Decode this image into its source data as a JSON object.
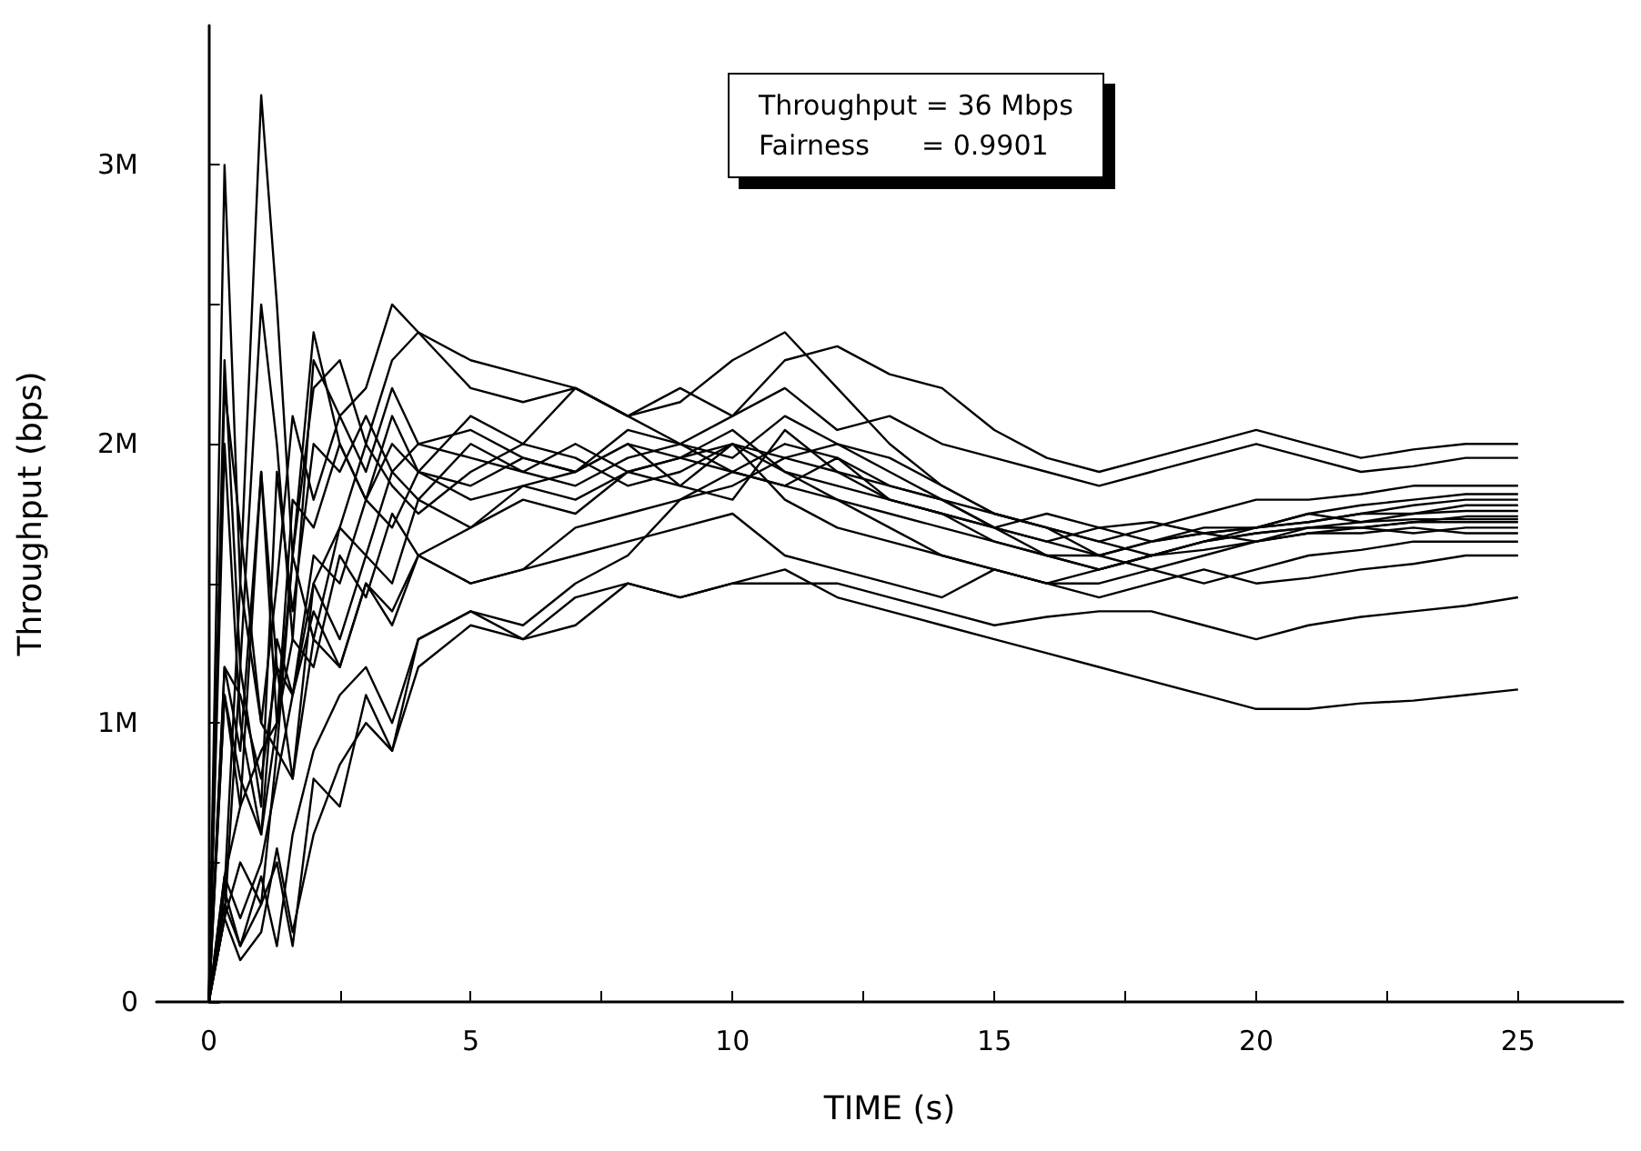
{
  "chart_data": {
    "type": "line",
    "xlabel": "TIME (s)",
    "ylabel": "Throughput (bps)",
    "annotations": [
      "Throughput = 36 Mbps",
      "Fairness      = 0.9901"
    ],
    "xlim": [
      -1,
      27
    ],
    "xticks": [
      0,
      {
        "value": 2.5,
        "label": null
      },
      5,
      {
        "value": 7.5,
        "label": null
      },
      10,
      {
        "value": 12.5,
        "label": null
      },
      15,
      {
        "value": 17.5,
        "label": null
      },
      20,
      {
        "value": 22.5,
        "label": null
      },
      25
    ],
    "ylim": [
      0,
      3500000
    ],
    "yticks": [
      {
        "value": 0,
        "label": "0"
      },
      {
        "value": 500000,
        "label": null
      },
      {
        "value": 1000000,
        "label": "1M"
      },
      {
        "value": 1500000,
        "label": null
      },
      {
        "value": 2000000,
        "label": "2M"
      },
      {
        "value": 2500000,
        "label": null
      },
      {
        "value": 3000000,
        "label": "3M"
      }
    ],
    "grid": false,
    "marker": "none",
    "line_style": "solid",
    "x": [
      0,
      0.3,
      0.6,
      1,
      1.3,
      1.6,
      2,
      2.5,
      3,
      3.5,
      4,
      5,
      6,
      7,
      8,
      9,
      10,
      11,
      12,
      13,
      14,
      15,
      16,
      17,
      18,
      19,
      20,
      21,
      22,
      23,
      24,
      25
    ],
    "series": [
      {
        "color": "#000000",
        "values": [
          0,
          3000000,
          1500000,
          1000000,
          900000,
          1600000,
          2200000,
          2300000,
          2000000,
          2300000,
          2400000,
          2200000,
          2150000,
          2200000,
          2100000,
          2200000,
          2100000,
          2300000,
          2350000,
          2250000,
          2200000,
          2050000,
          1950000,
          1900000,
          1950000,
          2000000,
          2050000,
          2000000,
          1950000,
          1980000,
          2000000,
          2000000
        ]
      },
      {
        "color": "#000000",
        "values": [
          0,
          400000,
          1500000,
          3250000,
          2500000,
          1600000,
          2400000,
          2000000,
          1800000,
          2000000,
          1900000,
          2100000,
          2000000,
          2200000,
          2100000,
          2000000,
          2100000,
          2200000,
          2050000,
          2100000,
          2000000,
          1950000,
          1900000,
          1850000,
          1900000,
          1950000,
          2000000,
          1950000,
          1900000,
          1920000,
          1950000,
          1950000
        ]
      },
      {
        "color": "#000000",
        "values": [
          0,
          300000,
          1200000,
          2500000,
          2000000,
          1300000,
          2300000,
          2100000,
          2200000,
          2500000,
          2400000,
          2300000,
          2250000,
          2200000,
          2100000,
          2150000,
          2300000,
          2400000,
          2200000,
          2000000,
          1850000,
          1750000,
          1700000,
          1650000,
          1700000,
          1750000,
          1800000,
          1800000,
          1820000,
          1850000,
          1850000,
          1850000
        ]
      },
      {
        "color": "#000000",
        "values": [
          0,
          2300000,
          1200000,
          700000,
          1900000,
          1400000,
          2000000,
          1900000,
          2100000,
          1900000,
          2000000,
          1950000,
          1900000,
          2000000,
          1900000,
          1850000,
          2000000,
          1900000,
          1800000,
          1700000,
          1600000,
          1550000,
          1500000,
          1550000,
          1600000,
          1650000,
          1700000,
          1720000,
          1750000,
          1780000,
          1800000,
          1800000
        ]
      },
      {
        "color": "#000000",
        "values": [
          0,
          2000000,
          1000000,
          600000,
          1000000,
          1800000,
          1700000,
          2000000,
          1800000,
          2100000,
          1900000,
          1850000,
          1950000,
          1900000,
          2000000,
          1950000,
          1900000,
          1850000,
          1800000,
          1750000,
          1700000,
          1650000,
          1600000,
          1600000,
          1650000,
          1700000,
          1700000,
          1720000,
          1750000,
          1750000,
          1780000,
          1780000
        ]
      },
      {
        "color": "#000000",
        "values": [
          0,
          1200000,
          900000,
          1900000,
          1200000,
          800000,
          1500000,
          1700000,
          2000000,
          1850000,
          1750000,
          1900000,
          2000000,
          1950000,
          1850000,
          1900000,
          2000000,
          1950000,
          1900000,
          1850000,
          1800000,
          1700000,
          1650000,
          1700000,
          1720000,
          1680000,
          1700000,
          1750000,
          1720000,
          1750000,
          1760000,
          1760000
        ]
      },
      {
        "color": "#000000",
        "values": [
          0,
          1100000,
          800000,
          600000,
          1300000,
          1100000,
          1600000,
          1500000,
          1800000,
          1700000,
          1900000,
          1800000,
          1850000,
          1900000,
          2000000,
          1850000,
          1800000,
          2050000,
          1900000,
          1800000,
          1750000,
          1700000,
          1600000,
          1550000,
          1600000,
          1650000,
          1680000,
          1700000,
          1700000,
          1720000,
          1740000,
          1740000
        ]
      },
      {
        "color": "#000000",
        "values": [
          0,
          450000,
          300000,
          500000,
          800000,
          1100000,
          1500000,
          1300000,
          1600000,
          1500000,
          1800000,
          1700000,
          1850000,
          1800000,
          1900000,
          1950000,
          2000000,
          1800000,
          1700000,
          1650000,
          1600000,
          1550000,
          1500000,
          1500000,
          1550000,
          1600000,
          1650000,
          1700000,
          1720000,
          1730000,
          1730000,
          1730000
        ]
      },
      {
        "color": "#000000",
        "values": [
          0,
          400000,
          200000,
          350000,
          500000,
          200000,
          800000,
          700000,
          1100000,
          900000,
          1300000,
          1400000,
          1350000,
          1500000,
          1600000,
          1800000,
          1900000,
          2000000,
          1950000,
          1800000,
          1750000,
          1700000,
          1650000,
          1600000,
          1650000,
          1680000,
          1650000,
          1680000,
          1700000,
          1720000,
          1720000,
          1720000
        ]
      },
      {
        "color": "#000000",
        "values": [
          0,
          300000,
          150000,
          250000,
          550000,
          250000,
          600000,
          850000,
          1000000,
          900000,
          1200000,
          1350000,
          1300000,
          1350000,
          1500000,
          1450000,
          1500000,
          1550000,
          1450000,
          1400000,
          1350000,
          1300000,
          1250000,
          1200000,
          1150000,
          1100000,
          1050000,
          1050000,
          1070000,
          1080000,
          1100000,
          1120000
        ]
      },
      {
        "color": "#000000",
        "values": [
          0,
          350000,
          200000,
          450000,
          200000,
          600000,
          900000,
          1100000,
          1200000,
          1000000,
          1300000,
          1400000,
          1300000,
          1450000,
          1500000,
          1450000,
          1500000,
          1500000,
          1500000,
          1450000,
          1400000,
          1350000,
          1380000,
          1400000,
          1400000,
          1350000,
          1300000,
          1350000,
          1380000,
          1400000,
          1420000,
          1450000
        ]
      },
      {
        "color": "#000000",
        "values": [
          0,
          1200000,
          1100000,
          800000,
          1200000,
          1100000,
          1400000,
          1200000,
          1500000,
          1350000,
          1600000,
          1500000,
          1550000,
          1600000,
          1650000,
          1700000,
          1750000,
          1600000,
          1550000,
          1500000,
          1450000,
          1550000,
          1500000,
          1450000,
          1500000,
          1550000,
          1500000,
          1520000,
          1550000,
          1570000,
          1600000,
          1600000
        ]
      },
      {
        "color": "#000000",
        "values": [
          0,
          2200000,
          1700000,
          1000000,
          1500000,
          2100000,
          1800000,
          2100000,
          1900000,
          2200000,
          2000000,
          2050000,
          1950000,
          1900000,
          2050000,
          2000000,
          1950000,
          2100000,
          2000000,
          1900000,
          1800000,
          1750000,
          1700000,
          1650000,
          1600000,
          1650000,
          1680000,
          1700000,
          1700000,
          1680000,
          1700000,
          1700000
        ]
      },
      {
        "color": "#000000",
        "values": [
          0,
          450000,
          700000,
          1900000,
          1000000,
          1600000,
          1300000,
          1700000,
          1600000,
          1900000,
          1800000,
          2000000,
          1900000,
          1850000,
          1950000,
          2000000,
          1900000,
          1850000,
          1950000,
          1850000,
          1800000,
          1700000,
          1750000,
          1700000,
          1650000,
          1680000,
          1700000,
          1750000,
          1780000,
          1800000,
          1820000,
          1820000
        ]
      },
      {
        "color": "#000000",
        "values": [
          0,
          1100000,
          700000,
          900000,
          1000000,
          1300000,
          1200000,
          1600000,
          1450000,
          1750000,
          1600000,
          1700000,
          1800000,
          1750000,
          1900000,
          1950000,
          2050000,
          1900000,
          1850000,
          1800000,
          1750000,
          1650000,
          1600000,
          1550000,
          1600000,
          1620000,
          1650000,
          1680000,
          1680000,
          1700000,
          1680000,
          1680000
        ]
      },
      {
        "color": "#000000",
        "values": [
          0,
          300000,
          500000,
          350000,
          900000,
          800000,
          1300000,
          1200000,
          1500000,
          1400000,
          1600000,
          1500000,
          1550000,
          1700000,
          1750000,
          1800000,
          1850000,
          1950000,
          2000000,
          1950000,
          1850000,
          1750000,
          1700000,
          1600000,
          1550000,
          1500000,
          1550000,
          1600000,
          1620000,
          1650000,
          1650000,
          1650000
        ]
      }
    ]
  }
}
